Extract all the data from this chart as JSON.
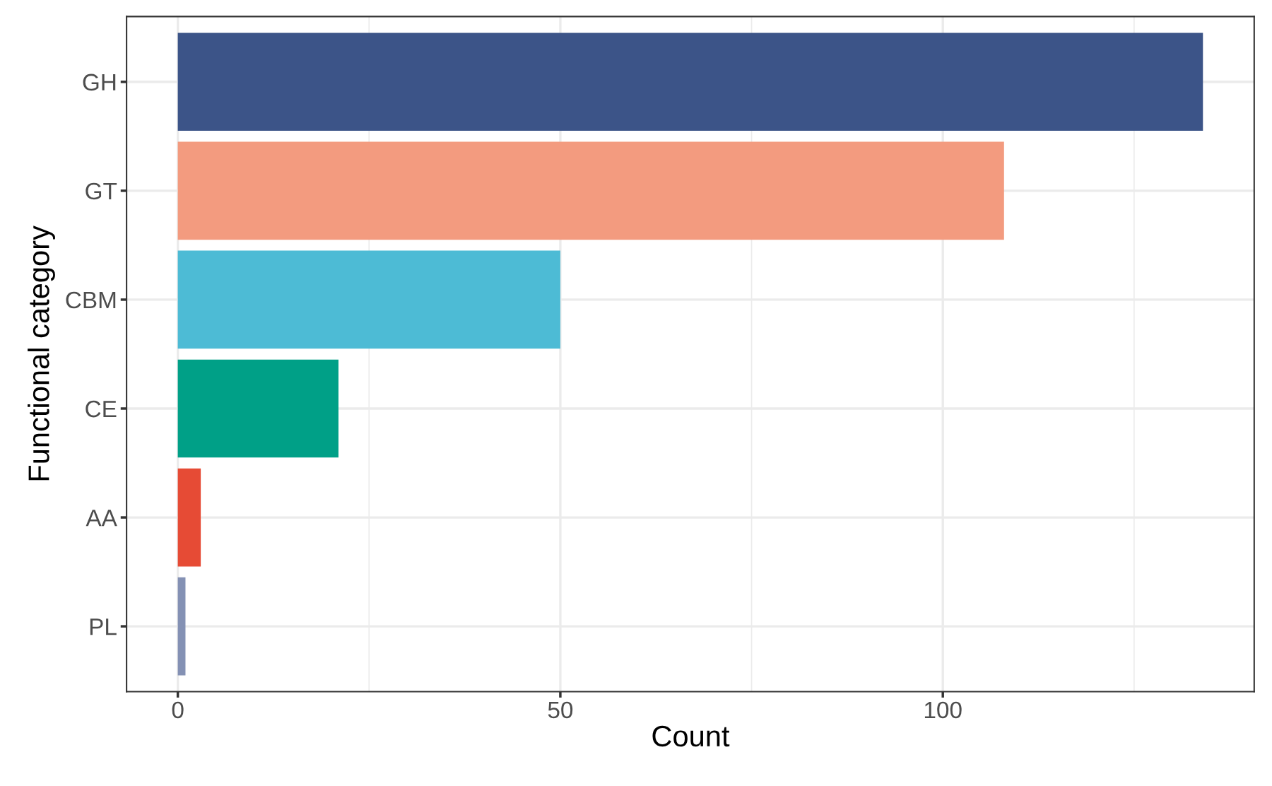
{
  "chart_data": {
    "type": "bar",
    "orientation": "horizontal",
    "categories": [
      "GH",
      "GT",
      "CBM",
      "CE",
      "AA",
      "PL"
    ],
    "values": [
      134,
      108,
      50,
      21,
      3,
      1
    ],
    "colors": [
      "#3c5488",
      "#f39b7f",
      "#4dbbd5",
      "#00a087",
      "#e64b35",
      "#8491b4"
    ],
    "xlabel": "Count",
    "ylabel": "Functional category",
    "xlim": [
      -6.7,
      140.7
    ],
    "xticks": [
      0,
      50,
      100
    ],
    "grid": true
  }
}
